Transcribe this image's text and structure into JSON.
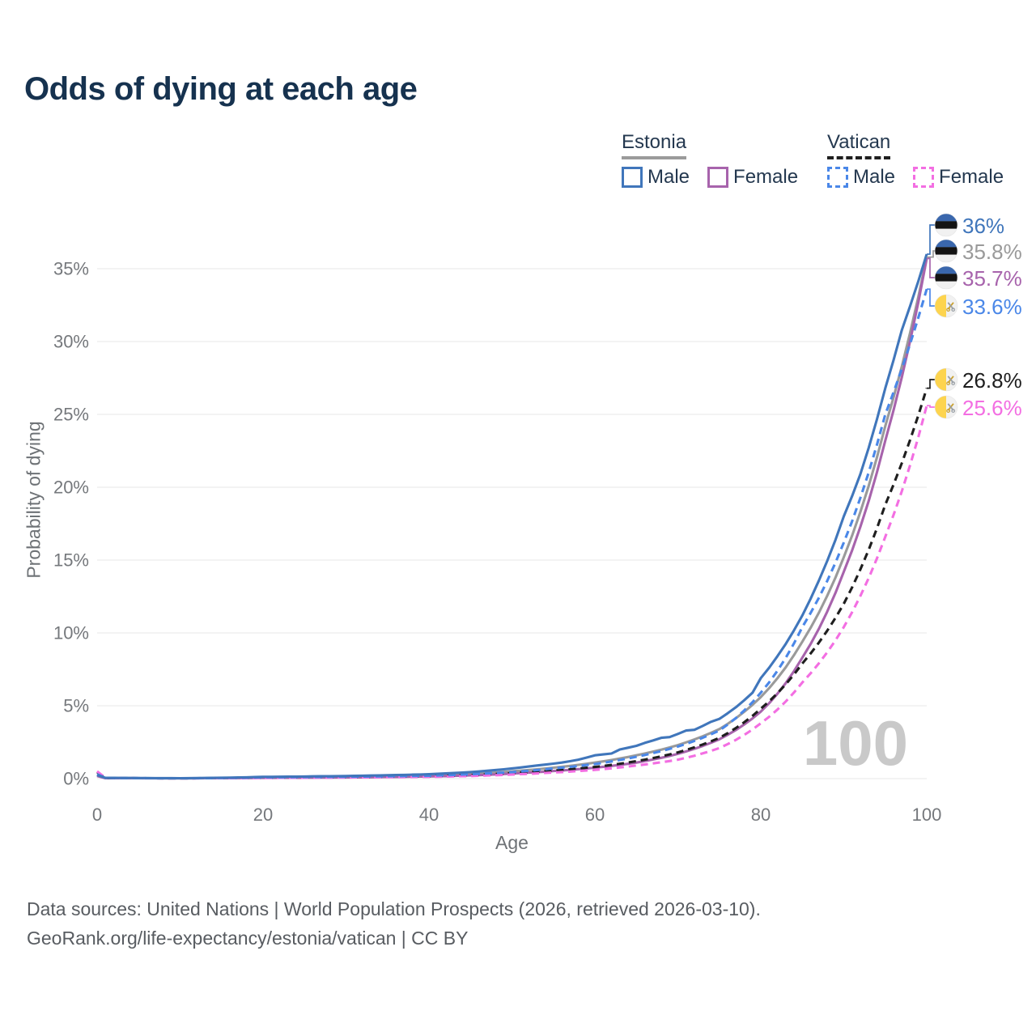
{
  "title": "Odds of dying at each age",
  "legend": {
    "groups": [
      {
        "name": "Estonia",
        "line_style": "solid",
        "underline_color": "#9b9b9b",
        "items": [
          {
            "label": "Male",
            "color": "#4076bb",
            "dashed": false
          },
          {
            "label": "Female",
            "color": "#a763ac",
            "dashed": false
          }
        ]
      },
      {
        "name": "Vatican",
        "line_style": "dashed",
        "underline_color": "#1f1f1f",
        "items": [
          {
            "label": "Male",
            "color": "#4a87e8",
            "dashed": true
          },
          {
            "label": "Female",
            "color": "#f36ee2",
            "dashed": true
          }
        ]
      }
    ]
  },
  "chart_data": {
    "type": "line",
    "title": "Odds of dying at each age",
    "xlabel": "Age",
    "ylabel": "Probability of dying",
    "xlim": [
      0,
      100
    ],
    "ylim": [
      0,
      37
    ],
    "x_ticks": [
      0,
      20,
      40,
      60,
      80,
      100
    ],
    "y_ticks": [
      0,
      5,
      10,
      15,
      20,
      25,
      30,
      35
    ],
    "y_tick_suffix": "%",
    "grid": "horizontal",
    "legend_position": "top-right",
    "watermark": "100",
    "x": [
      0,
      1,
      10,
      20,
      30,
      40,
      45,
      50,
      55,
      60,
      65,
      70,
      75,
      80,
      85,
      90,
      95,
      100
    ],
    "series": [
      {
        "id": "estonia_total",
        "name": "Estonia (both sexes)",
        "country": "Estonia",
        "sex": "Total",
        "color": "#9a9a9a",
        "dashed": false,
        "end_label": "35.8%",
        "end_value": 35.8,
        "values": [
          0.2,
          0.04,
          0.02,
          0.08,
          0.12,
          0.22,
          0.32,
          0.5,
          0.75,
          1.1,
          1.6,
          2.3,
          3.4,
          5.6,
          9.4,
          15.2,
          24.2,
          35.8
        ]
      },
      {
        "id": "estonia_female",
        "name": "Estonia Female",
        "country": "Estonia",
        "sex": "Female",
        "color": "#a763ac",
        "dashed": false,
        "end_label": "35.7%",
        "end_value": 35.7,
        "values": [
          0.18,
          0.03,
          0.02,
          0.05,
          0.08,
          0.15,
          0.22,
          0.35,
          0.52,
          0.75,
          1.1,
          1.7,
          2.7,
          4.6,
          8.3,
          14.2,
          23.2,
          35.7
        ]
      },
      {
        "id": "vatican_total",
        "name": "Vatican (both sexes)",
        "country": "Vatican",
        "sex": "Total",
        "color": "#1e1e1e",
        "dashed": true,
        "end_label": "26.8%",
        "end_value": 26.8,
        "values": [
          0.45,
          0.04,
          0.02,
          0.07,
          0.1,
          0.16,
          0.24,
          0.38,
          0.55,
          0.8,
          1.2,
          1.8,
          2.8,
          4.8,
          7.9,
          12.0,
          18.8,
          26.8
        ]
      },
      {
        "id": "vatican_female",
        "name": "Vatican Female",
        "country": "Vatican",
        "sex": "Female",
        "color": "#f36ee2",
        "dashed": true,
        "end_label": "25.6%",
        "end_value": 25.6,
        "values": [
          0.5,
          0.05,
          0.02,
          0.05,
          0.08,
          0.12,
          0.18,
          0.28,
          0.42,
          0.6,
          0.9,
          1.3,
          2.1,
          3.8,
          6.6,
          10.4,
          16.6,
          25.6
        ]
      },
      {
        "id": "vatican_male",
        "name": "Vatican Male",
        "country": "Vatican",
        "sex": "Male",
        "color": "#4a87e8",
        "dashed": true,
        "end_label": "33.6%",
        "end_value": 33.6,
        "values": [
          0.3,
          0.05,
          0.02,
          0.09,
          0.13,
          0.2,
          0.3,
          0.45,
          0.7,
          1.0,
          1.5,
          2.2,
          3.3,
          5.9,
          10.4,
          16.2,
          25.0,
          33.6
        ]
      },
      {
        "id": "estonia_male",
        "name": "Estonia Male",
        "country": "Estonia",
        "sex": "Male",
        "color": "#4076bb",
        "dashed": false,
        "end_label": "36%",
        "end_value": 36,
        "x": [
          0,
          1,
          10,
          20,
          30,
          40,
          45,
          50,
          53,
          56,
          58,
          60,
          62,
          63,
          65,
          66,
          68,
          69,
          71,
          72,
          74,
          75,
          77,
          79,
          80,
          82,
          85,
          87,
          90,
          92,
          95,
          97,
          100
        ],
        "values": [
          0.25,
          0.05,
          0.03,
          0.12,
          0.18,
          0.3,
          0.45,
          0.7,
          0.9,
          1.1,
          1.3,
          1.6,
          1.72,
          2.0,
          2.25,
          2.45,
          2.8,
          2.85,
          3.3,
          3.35,
          3.9,
          4.1,
          4.9,
          5.9,
          6.9,
          8.4,
          11.2,
          13.6,
          18.0,
          20.9,
          26.8,
          30.8,
          36.0
        ]
      }
    ],
    "flags": {
      "estonia": {
        "type": "stripes",
        "colors": [
          "#3a67ad",
          "#141414",
          "#f1f1f1"
        ]
      },
      "vatican": {
        "type": "halves",
        "colors": [
          "#fdd44e",
          "#f1f1f1"
        ],
        "key_colors": [
          "#c9a02c",
          "#9aa0a6"
        ]
      }
    }
  },
  "footer": {
    "line1": "Data sources: United Nations | World Population Prospects (2026, retrieved 2026-03-10).",
    "line2": "GeoRank.org/life-expectancy/estonia/vatican | CC BY"
  }
}
